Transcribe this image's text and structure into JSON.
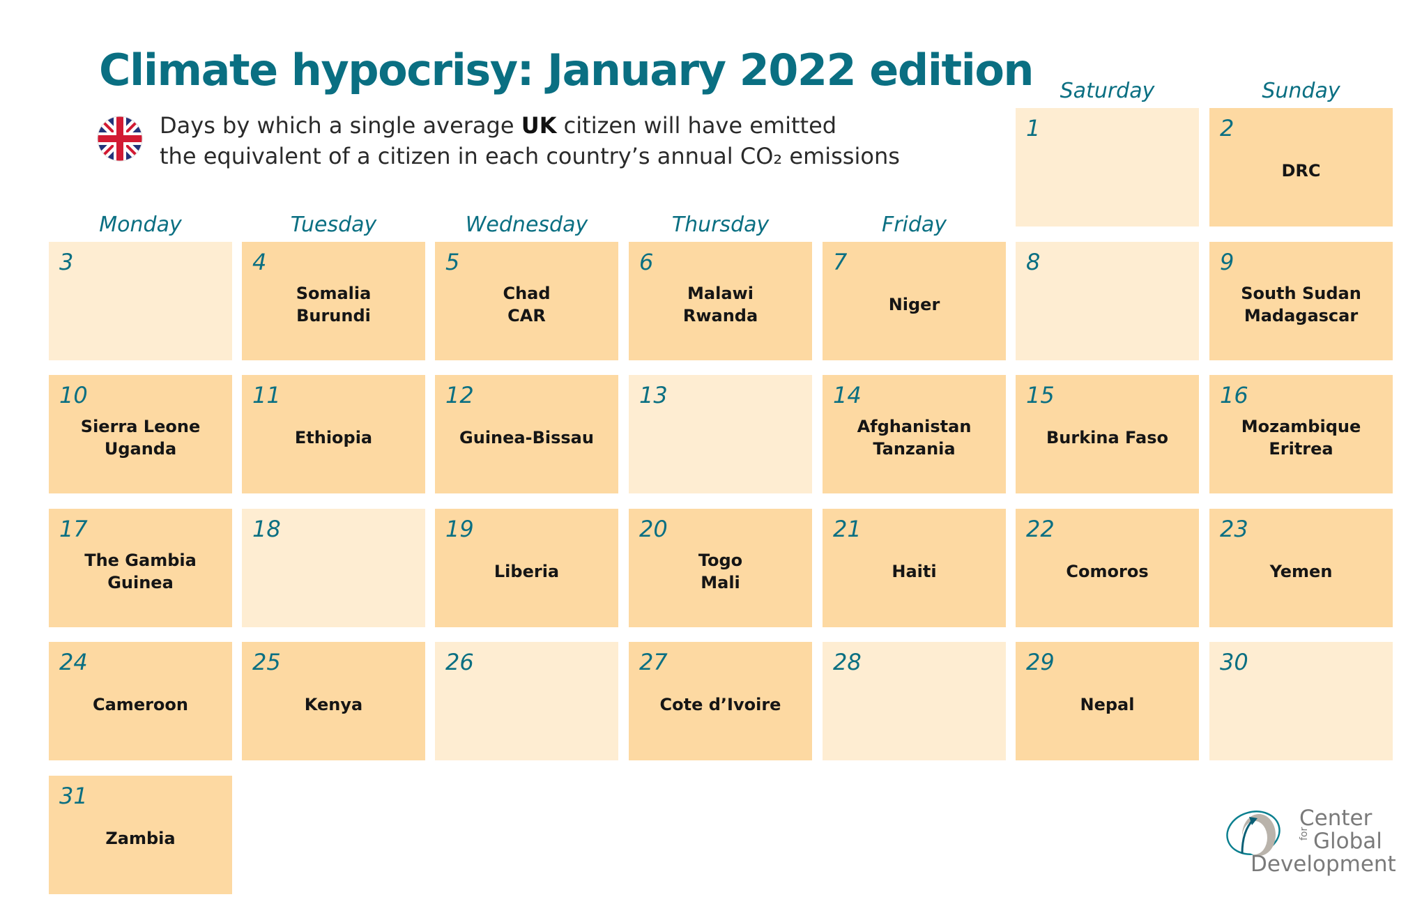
{
  "header": {
    "title": "Climate hypocrisy: January 2022 edition",
    "subtitle_pre": "Days by which a single average ",
    "subtitle_bold": "UK",
    "subtitle_post": " citizen will have emitted",
    "subtitle_line2": "the equivalent of a citizen in each country’s annual CO₂ emissions",
    "flag_icon": "uk-flag-icon"
  },
  "weekdays": [
    "Monday",
    "Tuesday",
    "Wednesday",
    "Thursday",
    "Friday",
    "Saturday",
    "Sunday"
  ],
  "days": [
    {
      "n": "1",
      "countries": []
    },
    {
      "n": "2",
      "countries": [
        "DRC"
      ]
    },
    {
      "n": "3",
      "countries": []
    },
    {
      "n": "4",
      "countries": [
        "Somalia",
        "Burundi"
      ]
    },
    {
      "n": "5",
      "countries": [
        "Chad",
        "CAR"
      ]
    },
    {
      "n": "6",
      "countries": [
        "Malawi",
        "Rwanda"
      ]
    },
    {
      "n": "7",
      "countries": [
        "Niger"
      ]
    },
    {
      "n": "8",
      "countries": []
    },
    {
      "n": "9",
      "countries": [
        "South Sudan",
        "Madagascar"
      ]
    },
    {
      "n": "10",
      "countries": [
        "Sierra Leone",
        "Uganda"
      ]
    },
    {
      "n": "11",
      "countries": [
        "Ethiopia"
      ]
    },
    {
      "n": "12",
      "countries": [
        "Guinea-Bissau"
      ]
    },
    {
      "n": "13",
      "countries": []
    },
    {
      "n": "14",
      "countries": [
        "Afghanistan",
        "Tanzania"
      ]
    },
    {
      "n": "15",
      "countries": [
        "Burkina Faso"
      ]
    },
    {
      "n": "16",
      "countries": [
        "Mozambique",
        "Eritrea"
      ]
    },
    {
      "n": "17",
      "countries": [
        "The Gambia",
        "Guinea"
      ]
    },
    {
      "n": "18",
      "countries": []
    },
    {
      "n": "19",
      "countries": [
        "Liberia"
      ]
    },
    {
      "n": "20",
      "countries": [
        "Togo",
        "Mali"
      ]
    },
    {
      "n": "21",
      "countries": [
        "Haiti"
      ]
    },
    {
      "n": "22",
      "countries": [
        "Comoros"
      ]
    },
    {
      "n": "23",
      "countries": [
        "Yemen"
      ]
    },
    {
      "n": "24",
      "countries": [
        "Cameroon"
      ]
    },
    {
      "n": "25",
      "countries": [
        "Kenya"
      ]
    },
    {
      "n": "26",
      "countries": []
    },
    {
      "n": "27",
      "countries": [
        "Cote d’Ivoire"
      ]
    },
    {
      "n": "28",
      "countries": []
    },
    {
      "n": "29",
      "countries": [
        "Nepal"
      ]
    },
    {
      "n": "30",
      "countries": []
    },
    {
      "n": "31",
      "countries": [
        "Zambia"
      ]
    }
  ],
  "logo": {
    "icon": "cgd-globe-logo-icon",
    "line1": "Center",
    "for": "for",
    "line2": "Global",
    "line3": "Development"
  },
  "colors": {
    "accent": "#0a6f82",
    "cell_filled": "#fdd9a2",
    "cell_empty": "#feedd2"
  }
}
